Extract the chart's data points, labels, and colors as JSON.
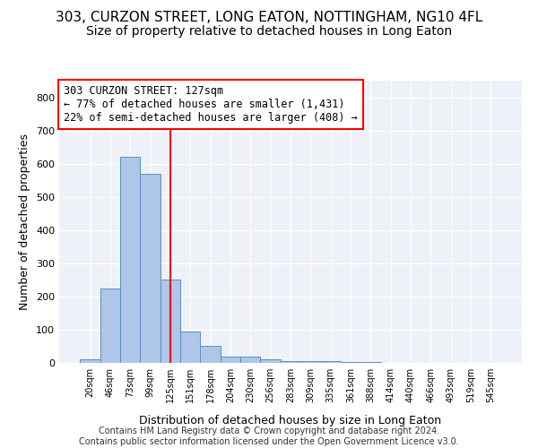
{
  "title1": "303, CURZON STREET, LONG EATON, NOTTINGHAM, NG10 4FL",
  "title2": "Size of property relative to detached houses in Long Eaton",
  "xlabel": "Distribution of detached houses by size in Long Eaton",
  "ylabel": "Number of detached properties",
  "bar_labels": [
    "20sqm",
    "46sqm",
    "73sqm",
    "99sqm",
    "125sqm",
    "151sqm",
    "178sqm",
    "204sqm",
    "230sqm",
    "256sqm",
    "283sqm",
    "309sqm",
    "335sqm",
    "361sqm",
    "388sqm",
    "414sqm",
    "440sqm",
    "466sqm",
    "493sqm",
    "519sqm",
    "545sqm"
  ],
  "bar_values": [
    10,
    225,
    620,
    570,
    250,
    95,
    50,
    20,
    20,
    12,
    5,
    5,
    5,
    2,
    2,
    1,
    0,
    0,
    0,
    0,
    0
  ],
  "bar_color": "#aec6e8",
  "bar_edge_color": "#5a8fc0",
  "vline_x": 4,
  "vline_color": "red",
  "annotation_text": "303 CURZON STREET: 127sqm\n← 77% of detached houses are smaller (1,431)\n22% of semi-detached houses are larger (408) →",
  "annotation_box_color": "white",
  "annotation_box_edge_color": "red",
  "ylim": [
    0,
    850
  ],
  "yticks": [
    0,
    100,
    200,
    300,
    400,
    500,
    600,
    700,
    800
  ],
  "footer_text": "Contains HM Land Registry data © Crown copyright and database right 2024.\nContains public sector information licensed under the Open Government Licence v3.0.",
  "bg_color": "#eef2f8",
  "grid_color": "white",
  "title1_fontsize": 11,
  "title2_fontsize": 10,
  "xlabel_fontsize": 9,
  "ylabel_fontsize": 9,
  "annotation_fontsize": 8.5,
  "footer_fontsize": 7
}
